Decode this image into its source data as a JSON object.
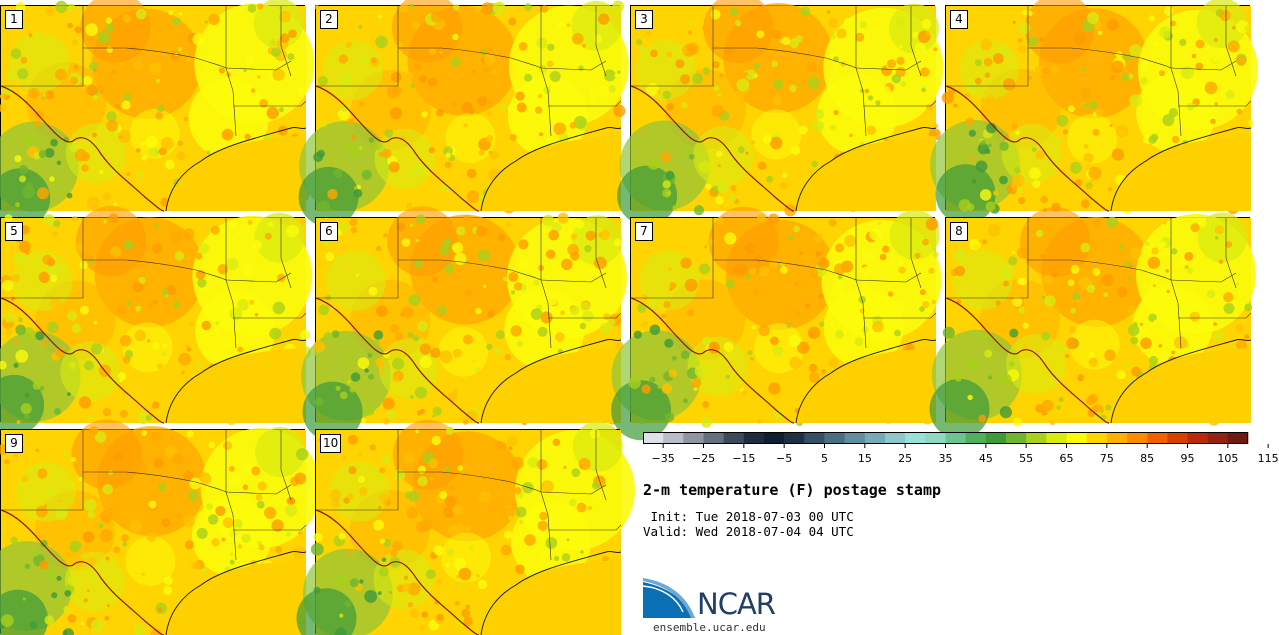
{
  "panels": [
    {
      "label": "1"
    },
    {
      "label": "2"
    },
    {
      "label": "3"
    },
    {
      "label": "4"
    },
    {
      "label": "5"
    },
    {
      "label": "6"
    },
    {
      "label": "7"
    },
    {
      "label": "8"
    },
    {
      "label": "9"
    },
    {
      "label": "10"
    }
  ],
  "colorbar": {
    "ticks": [
      "−35",
      "−25",
      "−15",
      "−5",
      "5",
      "15",
      "25",
      "35",
      "45",
      "55",
      "65",
      "75",
      "85",
      "95",
      "105",
      "115"
    ],
    "colors": [
      "#dfe1e8",
      "#b8bcc6",
      "#8f96a2",
      "#65707f",
      "#3d4a5c",
      "#1e2c3e",
      "#0f1e32",
      "#1f3044",
      "#355066",
      "#4a6e84",
      "#5f8ea0",
      "#76aab8",
      "#8dc6cc",
      "#96e2d8",
      "#8fd9c0",
      "#6cc490",
      "#4fb05e",
      "#3f9a3a",
      "#6fb52e",
      "#a9d01c",
      "#d8ea10",
      "#fbfb0b",
      "#ffd400",
      "#ffb000",
      "#ff8a00",
      "#f36000",
      "#d84000",
      "#b82a0a",
      "#962012",
      "#6e1a10"
    ]
  },
  "title": "2-m temperature (F) postage stamp",
  "init_line": " Init: Tue 2018-07-03 00 UTC",
  "valid_line": "Valid: Wed 2018-07-04 04 UTC",
  "logo_text": "NCAR",
  "logo_url": "ensemble.ucar.edu"
}
